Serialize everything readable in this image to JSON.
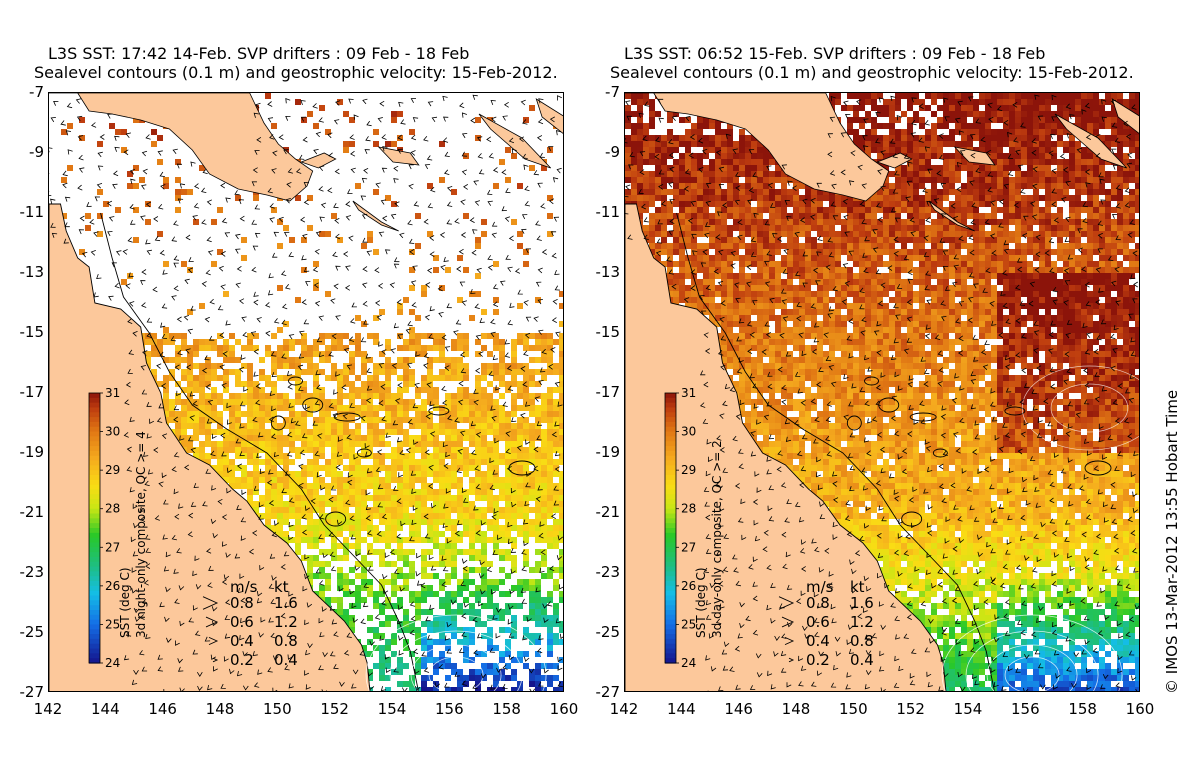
{
  "panels": [
    {
      "id": "left",
      "title_line1": "L3S SST: 17:42 14-Feb. SVP drifters : 09 Feb - 18 Feb",
      "title_line2": "Sealevel contours (0.1 m) and geostrophic velocity: 15-Feb-2012.",
      "colorbar_title": "SST (deg C)",
      "colorbar_subtitle": "3d night-only composite, QC >= 4",
      "cloud_fraction": 0.55
    },
    {
      "id": "right",
      "title_line1": "L3S SST: 06:52 15-Feb. SVP drifters : 09 Feb - 18 Feb",
      "title_line2": "Sealevel contours (0.1 m) and geostrophic velocity: 15-Feb-2012.",
      "colorbar_title": "SST (deg C)",
      "colorbar_subtitle": "3d day-only composite, QC >= 2",
      "cloud_fraction": 0.12
    }
  ],
  "axes": {
    "x_ticks": [
      "142",
      "144",
      "146",
      "148",
      "150",
      "152",
      "154",
      "156",
      "158",
      "160"
    ],
    "y_ticks": [
      "-7",
      "-9",
      "-11",
      "-13",
      "-15",
      "-17",
      "-19",
      "-21",
      "-23",
      "-25",
      "-27"
    ],
    "xlim": [
      142,
      160
    ],
    "ylim": [
      -27,
      -7
    ]
  },
  "colorbar": {
    "ticks": [
      "31",
      "30",
      "29",
      "28",
      "27",
      "26",
      "25",
      "24"
    ],
    "range": [
      24,
      31
    ]
  },
  "velocity_legend": {
    "header_ms": "m/s",
    "header_kt": "kt",
    "rows": [
      {
        "ms": "0.8",
        "kt": "1.6"
      },
      {
        "ms": "0.6",
        "kt": "1.2"
      },
      {
        "ms": "0.4",
        "kt": "0.8"
      },
      {
        "ms": "0.2",
        "kt": "0.4"
      }
    ]
  },
  "credit": "© IMOS 13-Mar-2012 13:55 Hobart Time",
  "colors": {
    "land": "#fcc89b",
    "cloud": "#ffffff",
    "coast": "#000000"
  }
}
